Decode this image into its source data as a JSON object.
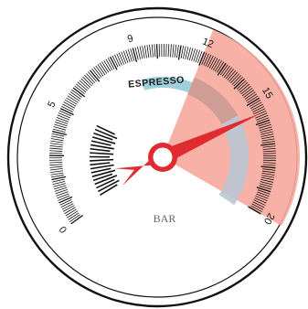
{
  "gauge": {
    "unit": "BAR",
    "min": 0,
    "max": 20,
    "tick_labels": [
      "0",
      "5",
      "9",
      "12",
      "15",
      "20"
    ],
    "needle_value": 15.6,
    "zones": [
      {
        "name": "ESPRESSO",
        "from": 9,
        "to": 12,
        "color": "#9fcfdc"
      },
      {
        "name": "",
        "from": 12,
        "to": 20,
        "color": "#f7a89c"
      }
    ],
    "colors": {
      "needle": "#e02b30",
      "outer_rim": "#111111",
      "ticks": "#111111",
      "inner_arc_warm": "#c79b93",
      "inner_arc_cool": "#b9c6d3"
    }
  }
}
